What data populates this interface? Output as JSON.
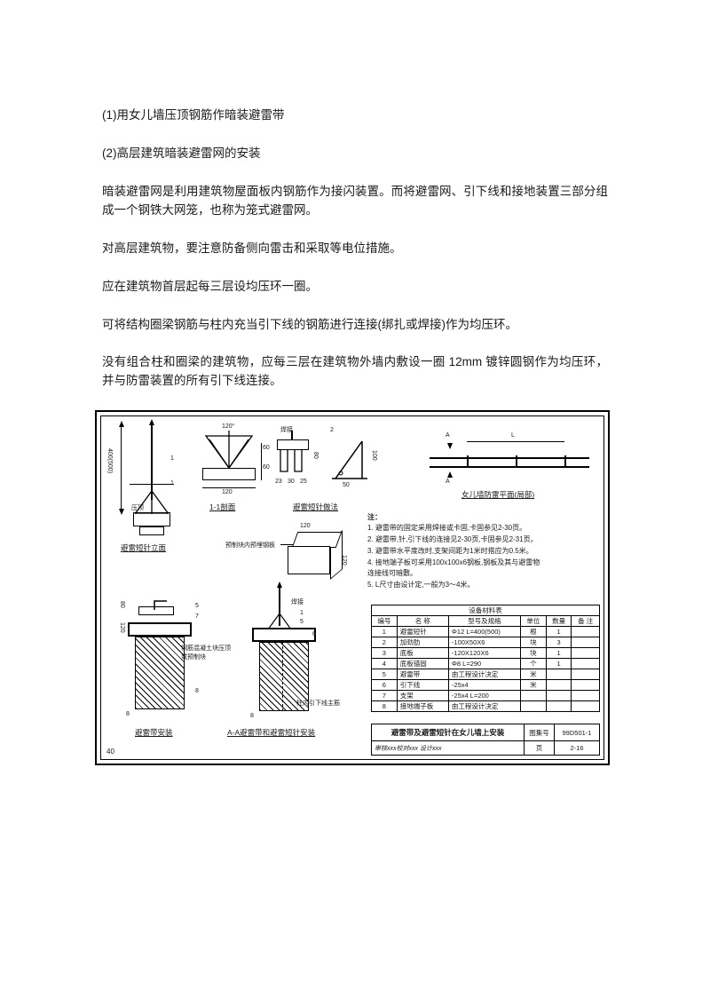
{
  "paragraphs": {
    "p1": "(1)用女儿墙压顶钢筋作暗装避雷带",
    "p2": "(2)高层建筑暗装避雷网的安装",
    "p3": "暗装避雷网是利用建筑物屋面板内钢筋作为接闪装置。而将避雷网、引下线和接地装置三部分组成一个钢铁大网笼，也称为笼式避雷网。",
    "p4": "对高层建筑物，要注意防备侧向雷击和采取等电位措施。",
    "p5": "应在建筑物首层起每三层设均压环一圈。",
    "p6": "可将结构圈梁钢筋与柱内充当引下线的钢筋进行连接(绑扎或焊接)作为均压环。",
    "p7": "没有组合柱和圈梁的建筑物，应每三层在建筑物外墙内敷设一圈 12mm 镀锌圆钢作为均压环，并与防雷装置的所有引下线连接。"
  },
  "diagram": {
    "page_no": "40",
    "labels": {
      "rod_elev": "避雷短针立面",
      "section_1_1": "1-1剖面",
      "rod_method": "避雷短针做法",
      "parapet_plan": "女儿墙防雷平面(局部)",
      "prefab_board": "预制块内预埋钢板",
      "belt_fix": "避雷带安装",
      "aa_section": "A-A避雷带和避雷短针安装",
      "yajing": "压顶",
      "hanjie": "焊接",
      "col_rebar_note": "钢筋混凝土块压顶\n或预制块",
      "col_down": "柱内引下线主筋"
    },
    "dims": {
      "h400": "400(500)",
      "w120_a": "120",
      "w120_b": "120",
      "h60": "60",
      "h60b": "60",
      "s23": "23",
      "s30a": "30",
      "s25": "25",
      "s50": "50",
      "h100": "100",
      "h80a": "80",
      "h80b": "80",
      "h120": "120",
      "h120b": "120",
      "bot8a": "8",
      "bot8b": "8",
      "L": "L",
      "A1": "A",
      "A2": "A",
      "ang120": "120°"
    },
    "notes_title": "注：",
    "notes": {
      "n1": "1. 避雷带的固定采用焊接或卡固,卡固参见2-30页。",
      "n2": "2. 避雷带,针,引下线的连接见2-30页,卡固参见2-31页。",
      "n3": "3. 避雷带水平度改时,支架间距为1米时搭应为0.5米。",
      "n4": "4. 接地端子板可采用100x100x6钢板,钢板及其与避雷物\n   连接线可暗敷。",
      "n5": "5. L尺寸由设计定,一般为3～4米。"
    },
    "materials_title": "设备材料表",
    "materials_header": {
      "no": "编号",
      "name": "名 称",
      "spec": "型号及规格",
      "unit": "单位",
      "qty": "数量",
      "remark": "备 注"
    },
    "materials": [
      {
        "no": "1",
        "name": "避雷短针",
        "spec": "Φ12 L=400(500)",
        "unit": "根",
        "qty": "1",
        "remark": ""
      },
      {
        "no": "2",
        "name": "加劲肋",
        "spec": "-100X50X6",
        "unit": "块",
        "qty": "3",
        "remark": ""
      },
      {
        "no": "3",
        "name": "底板",
        "spec": "-120X120X6",
        "unit": "块",
        "qty": "1",
        "remark": ""
      },
      {
        "no": "4",
        "name": "底板锚固",
        "spec": "Φ8     L=290",
        "unit": "个",
        "qty": "1",
        "remark": ""
      },
      {
        "no": "5",
        "name": "避雷带",
        "spec": "由工程设计决定",
        "unit": "米",
        "qty": "",
        "remark": ""
      },
      {
        "no": "6",
        "name": "引下线",
        "spec": "-25x4",
        "unit": "米",
        "qty": "",
        "remark": ""
      },
      {
        "no": "7",
        "name": "支架",
        "spec": "-25x4   L=200",
        "unit": "",
        "qty": "",
        "remark": ""
      },
      {
        "no": "8",
        "name": "接地端子板",
        "spec": "由工程设计决定",
        "unit": "",
        "qty": "",
        "remark": ""
      }
    ],
    "title_block": {
      "main": "避雷带及避雷短针在女儿墙上安装",
      "set_label": "图集号",
      "set_no": "99D501-1",
      "approval": "审核xxx校对xxx 设计xxx",
      "page_label": "页",
      "page_no": "2-16"
    }
  },
  "colors": {
    "text": "#1a1a1a",
    "line": "#000000",
    "bg": "#ffffff"
  }
}
